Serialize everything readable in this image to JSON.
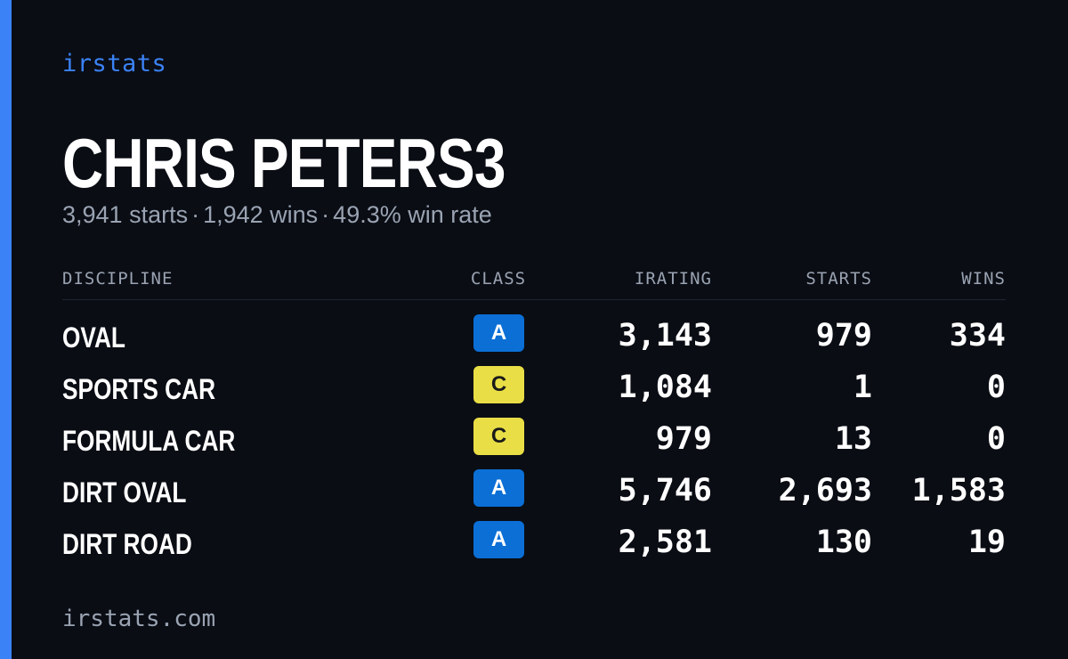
{
  "brand": "irstats",
  "driver": {
    "name": "CHRIS PETERS3"
  },
  "summary": {
    "starts": "3,941 starts",
    "wins": "1,942 wins",
    "win_rate": "49.3% win rate",
    "separator": "·"
  },
  "table": {
    "headers": {
      "discipline": "DISCIPLINE",
      "class": "CLASS",
      "irating": "IRATING",
      "starts": "STARTS",
      "wins": "WINS"
    },
    "rows": [
      {
        "discipline": "OVAL",
        "class": "A",
        "irating": "3,143",
        "starts": "979",
        "wins": "334"
      },
      {
        "discipline": "SPORTS CAR",
        "class": "C",
        "irating": "1,084",
        "starts": "1",
        "wins": "0"
      },
      {
        "discipline": "FORMULA CAR",
        "class": "C",
        "irating": "979",
        "starts": "13",
        "wins": "0"
      },
      {
        "discipline": "DIRT OVAL",
        "class": "A",
        "irating": "5,746",
        "starts": "2,693",
        "wins": "1,583"
      },
      {
        "discipline": "DIRT ROAD",
        "class": "A",
        "irating": "2,581",
        "starts": "130",
        "wins": "19"
      }
    ]
  },
  "class_colors": {
    "A": {
      "background": "#0b6fd6",
      "text": "#ffffff"
    },
    "C": {
      "background": "#e9de46",
      "text": "#1a1a1a"
    }
  },
  "colors": {
    "accent": "#3b82f6",
    "background": "#0a0d14",
    "muted": "#9aa3b2",
    "text": "#ffffff"
  },
  "footer": "irstats.com"
}
